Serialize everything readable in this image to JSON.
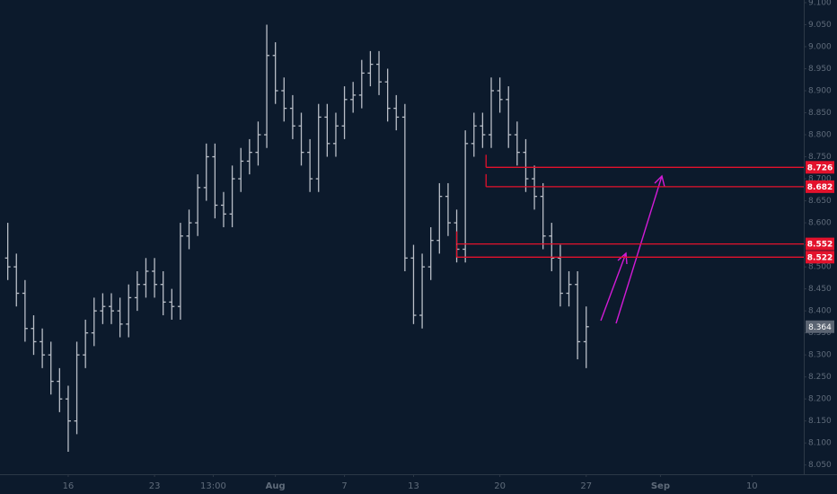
{
  "chart_data": {
    "type": "ohlc",
    "xlim": [
      -3.95,
      42.6
    ],
    "ylim": [
      8.029,
      9.106
    ],
    "xticks": [
      {
        "value": 0,
        "label": "16"
      },
      {
        "value": 5,
        "label": "23"
      },
      {
        "value": 8.4,
        "label": "13:00"
      },
      {
        "value": 12,
        "label": "Aug"
      },
      {
        "value": 16,
        "label": "7"
      },
      {
        "value": 20,
        "label": "13"
      },
      {
        "value": 25,
        "label": "20"
      },
      {
        "value": 30,
        "label": "27"
      },
      {
        "value": 34.3,
        "label": "Sep"
      },
      {
        "value": 39.6,
        "label": "10"
      }
    ],
    "yticks": [
      {
        "value": 9.1,
        "label": "9.100"
      },
      {
        "value": 9.05,
        "label": "9.050"
      },
      {
        "value": 9.0,
        "label": "9.000"
      },
      {
        "value": 8.95,
        "label": "8.950"
      },
      {
        "value": 8.9,
        "label": "8.900"
      },
      {
        "value": 8.85,
        "label": "8.850"
      },
      {
        "value": 8.8,
        "label": "8.800"
      },
      {
        "value": 8.75,
        "label": "8.750"
      },
      {
        "value": 8.7,
        "label": "8.700"
      },
      {
        "value": 8.65,
        "label": "8.650"
      },
      {
        "value": 8.6,
        "label": "8.600"
      },
      {
        "value": 8.55,
        "label": "8.550"
      },
      {
        "value": 8.5,
        "label": "8.500"
      },
      {
        "value": 8.45,
        "label": "8.450"
      },
      {
        "value": 8.4,
        "label": "8.400"
      },
      {
        "value": 8.35,
        "label": "8.350"
      },
      {
        "value": 8.3,
        "label": "8.300"
      },
      {
        "value": 8.25,
        "label": "8.250"
      },
      {
        "value": 8.2,
        "label": "8.200"
      },
      {
        "value": 8.15,
        "label": "8.150"
      },
      {
        "value": 8.1,
        "label": "8.100"
      },
      {
        "value": 8.05,
        "label": "8.050"
      }
    ],
    "grid": false,
    "color": "#b9bec7",
    "x": [
      -3.5,
      -3.0,
      -2.5,
      -2.0,
      -1.5,
      -1.0,
      -0.5,
      0,
      0.5,
      1.0,
      1.5,
      2.0,
      2.5,
      3.0,
      3.5,
      4.0,
      4.5,
      5.0,
      5.5,
      6.0,
      6.5,
      7.0,
      7.5,
      8.0,
      8.5,
      9.0,
      9.5,
      10.0,
      10.5,
      11.0,
      11.5,
      12.0,
      12.5,
      13.0,
      13.5,
      14.0,
      14.5,
      15.0,
      15.5,
      16.0,
      16.5,
      17.0,
      17.5,
      18.0,
      18.5,
      19.0,
      19.5,
      20.0,
      20.5,
      21.0,
      21.5,
      22.0,
      22.5,
      23.0,
      23.5,
      24.0,
      24.5,
      25.0,
      25.5,
      26.0,
      26.5,
      27.0,
      27.5,
      28.0,
      28.5,
      29.0,
      29.5,
      30.0
    ],
    "open": [
      8.52,
      8.5,
      8.44,
      8.36,
      8.33,
      8.3,
      8.24,
      8.2,
      8.15,
      8.3,
      8.35,
      8.4,
      8.41,
      8.4,
      8.37,
      8.43,
      8.46,
      8.49,
      8.46,
      8.42,
      8.41,
      8.57,
      8.6,
      8.68,
      8.75,
      8.64,
      8.62,
      8.7,
      8.74,
      8.76,
      8.8,
      8.98,
      8.9,
      8.86,
      8.82,
      8.76,
      8.7,
      8.84,
      8.78,
      8.82,
      8.88,
      8.89,
      8.94,
      8.96,
      8.92,
      8.86,
      8.84,
      8.52,
      8.39,
      8.5,
      8.56,
      8.66,
      8.6,
      8.54,
      8.78,
      8.82,
      8.8,
      8.9,
      8.88,
      8.8,
      8.76,
      8.7,
      8.66,
      8.57,
      8.52,
      8.44,
      8.46,
      8.33
    ],
    "high": [
      8.6,
      8.53,
      8.47,
      8.39,
      8.36,
      8.33,
      8.27,
      8.23,
      8.33,
      8.38,
      8.43,
      8.44,
      8.44,
      8.43,
      8.46,
      8.49,
      8.52,
      8.52,
      8.49,
      8.45,
      8.6,
      8.63,
      8.71,
      8.78,
      8.78,
      8.67,
      8.73,
      8.77,
      8.79,
      8.83,
      9.05,
      9.01,
      8.93,
      8.89,
      8.85,
      8.79,
      8.87,
      8.87,
      8.85,
      8.91,
      8.92,
      8.97,
      8.99,
      8.99,
      8.95,
      8.89,
      8.87,
      8.55,
      8.53,
      8.59,
      8.69,
      8.69,
      8.63,
      8.81,
      8.85,
      8.85,
      8.93,
      8.93,
      8.91,
      8.83,
      8.79,
      8.73,
      8.69,
      8.6,
      8.55,
      8.49,
      8.49,
      8.41
    ],
    "low": [
      8.47,
      8.41,
      8.33,
      8.3,
      8.27,
      8.21,
      8.17,
      8.08,
      8.12,
      8.27,
      8.32,
      8.37,
      8.37,
      8.34,
      8.34,
      8.4,
      8.43,
      8.43,
      8.39,
      8.38,
      8.38,
      8.54,
      8.57,
      8.65,
      8.61,
      8.59,
      8.59,
      8.67,
      8.71,
      8.73,
      8.77,
      8.87,
      8.83,
      8.79,
      8.73,
      8.67,
      8.67,
      8.75,
      8.75,
      8.79,
      8.85,
      8.86,
      8.91,
      8.89,
      8.83,
      8.81,
      8.49,
      8.37,
      8.36,
      8.47,
      8.53,
      8.57,
      8.51,
      8.51,
      8.75,
      8.77,
      8.77,
      8.85,
      8.77,
      8.73,
      8.67,
      8.63,
      8.54,
      8.49,
      8.41,
      8.41,
      8.29,
      8.27
    ],
    "close": [
      8.5,
      8.44,
      8.36,
      8.33,
      8.3,
      8.24,
      8.2,
      8.15,
      8.3,
      8.35,
      8.4,
      8.41,
      8.4,
      8.37,
      8.43,
      8.46,
      8.49,
      8.46,
      8.42,
      8.41,
      8.57,
      8.6,
      8.68,
      8.75,
      8.64,
      8.62,
      8.7,
      8.74,
      8.76,
      8.8,
      8.98,
      8.9,
      8.86,
      8.82,
      8.76,
      8.7,
      8.84,
      8.78,
      8.82,
      8.88,
      8.89,
      8.94,
      8.96,
      8.92,
      8.86,
      8.84,
      8.52,
      8.39,
      8.5,
      8.56,
      8.66,
      8.6,
      8.54,
      8.78,
      8.82,
      8.8,
      8.9,
      8.88,
      8.8,
      8.76,
      8.7,
      8.66,
      8.57,
      8.52,
      8.44,
      8.46,
      8.33,
      8.364
    ],
    "levels": [
      {
        "value": 8.726,
        "x_start": 24.2
      },
      {
        "value": 8.682,
        "x_start": 24.2
      },
      {
        "value": 8.552,
        "x_start": 22.5
      },
      {
        "value": 8.522,
        "x_start": 22.5
      }
    ],
    "level_color": "#e3122c",
    "last_price": 8.364
  }
}
